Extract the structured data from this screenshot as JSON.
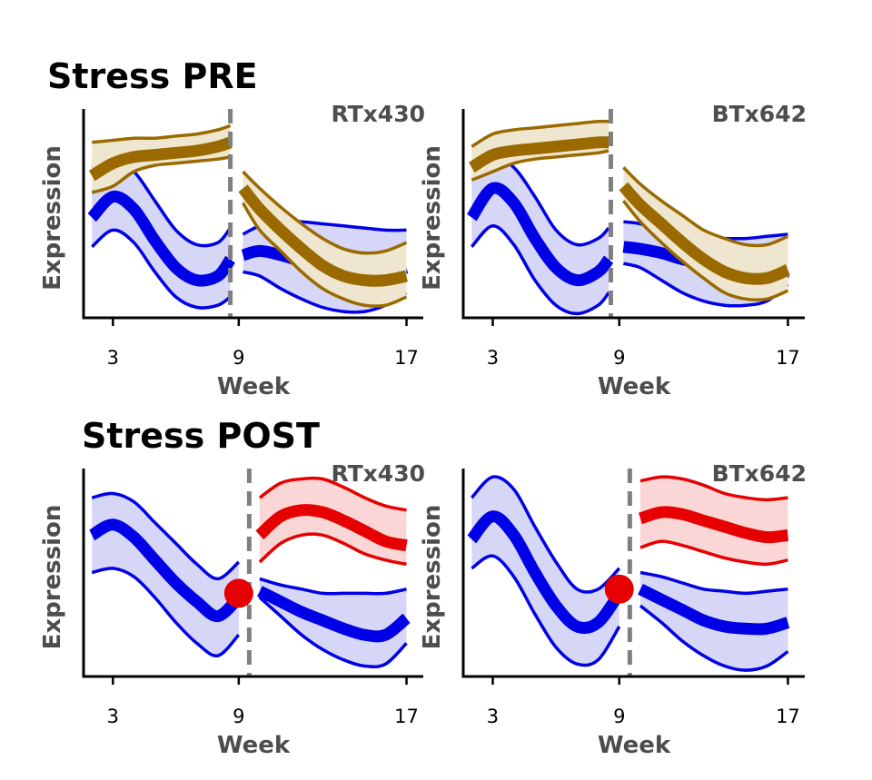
{
  "rows": [
    {
      "title": "Stress PRE"
    },
    {
      "title": "Stress POST"
    }
  ],
  "colors": {
    "blue": "#0000e6",
    "blue_fill": "#d6d6f7",
    "brown": "#9a6a00",
    "brown_fill": "#efe6cf",
    "red": "#e60000",
    "red_fill": "#fbd6d6",
    "divider": "#808080",
    "text_gray": "#4d4d4d"
  },
  "chart_data": [
    {
      "type": "line",
      "row": "Stress PRE",
      "title": "RTx430",
      "xlabel": "Week",
      "ylabel": "Expression",
      "xticks": [
        3,
        9,
        17
      ],
      "xlim": [
        1.6,
        17.8
      ],
      "ylim": [
        0,
        1
      ],
      "divider_x": 8.6,
      "series": [
        {
          "color": "blue",
          "segment": "pre",
          "x": [
            2,
            3,
            4,
            5,
            6,
            7,
            8,
            8.6
          ],
          "y": [
            0.48,
            0.58,
            0.52,
            0.37,
            0.24,
            0.18,
            0.2,
            0.28
          ],
          "lower": [
            0.34,
            0.42,
            0.36,
            0.22,
            0.1,
            0.05,
            0.06,
            0.1
          ],
          "upper": [
            0.72,
            0.75,
            0.7,
            0.56,
            0.42,
            0.35,
            0.36,
            0.43
          ]
        },
        {
          "color": "brown",
          "segment": "pre",
          "x": [
            2,
            3,
            4,
            5,
            6,
            7,
            8,
            8.6
          ],
          "y": [
            0.68,
            0.74,
            0.77,
            0.78,
            0.79,
            0.8,
            0.82,
            0.84
          ],
          "lower": [
            0.6,
            0.63,
            0.7,
            0.73,
            0.74,
            0.75,
            0.76,
            0.77
          ],
          "upper": [
            0.84,
            0.85,
            0.86,
            0.86,
            0.87,
            0.88,
            0.9,
            0.92
          ]
        },
        {
          "color": "blue",
          "segment": "post",
          "x": [
            9.2,
            10,
            11,
            12,
            13,
            14,
            15,
            16,
            17
          ],
          "y": [
            0.3,
            0.32,
            0.3,
            0.27,
            0.24,
            0.21,
            0.2,
            0.21,
            0.24
          ],
          "lower": [
            0.22,
            0.2,
            0.14,
            0.09,
            0.05,
            0.03,
            0.03,
            0.06,
            0.12
          ],
          "upper": [
            0.4,
            0.44,
            0.46,
            0.46,
            0.45,
            0.44,
            0.43,
            0.42,
            0.42
          ]
        },
        {
          "color": "brown",
          "segment": "post",
          "x": [
            9.2,
            10,
            11,
            12,
            13,
            14,
            15,
            16,
            17
          ],
          "y": [
            0.62,
            0.52,
            0.42,
            0.33,
            0.25,
            0.2,
            0.18,
            0.18,
            0.2
          ],
          "lower": [
            0.55,
            0.42,
            0.32,
            0.22,
            0.14,
            0.09,
            0.06,
            0.06,
            0.1
          ],
          "upper": [
            0.7,
            0.62,
            0.53,
            0.45,
            0.38,
            0.33,
            0.31,
            0.32,
            0.36
          ]
        }
      ]
    },
    {
      "type": "line",
      "row": "Stress PRE",
      "title": "BTx642",
      "xlabel": "Week",
      "ylabel": "Expression",
      "xticks": [
        3,
        9,
        17
      ],
      "xlim": [
        1.6,
        17.8
      ],
      "ylim": [
        0,
        1
      ],
      "divider_x": 8.6,
      "series": [
        {
          "color": "blue",
          "segment": "pre",
          "x": [
            2,
            3,
            4,
            5,
            6,
            7,
            8,
            8.5
          ],
          "y": [
            0.48,
            0.62,
            0.55,
            0.38,
            0.24,
            0.18,
            0.22,
            0.28
          ],
          "lower": [
            0.34,
            0.44,
            0.35,
            0.18,
            0.06,
            0.02,
            0.06,
            0.12
          ],
          "upper": [
            0.72,
            0.77,
            0.72,
            0.58,
            0.42,
            0.35,
            0.38,
            0.43
          ]
        },
        {
          "color": "brown",
          "segment": "pre",
          "x": [
            2,
            3,
            4,
            5,
            6,
            7,
            8,
            8.5
          ],
          "y": [
            0.72,
            0.78,
            0.8,
            0.81,
            0.82,
            0.83,
            0.84,
            0.84
          ],
          "lower": [
            0.66,
            0.7,
            0.74,
            0.76,
            0.77,
            0.78,
            0.79,
            0.8
          ],
          "upper": [
            0.82,
            0.88,
            0.9,
            0.91,
            0.92,
            0.93,
            0.94,
            0.94
          ]
        },
        {
          "color": "blue",
          "segment": "post",
          "x": [
            9.2,
            10,
            11,
            12,
            13,
            14,
            15,
            16,
            17
          ],
          "y": [
            0.34,
            0.33,
            0.31,
            0.28,
            0.26,
            0.23,
            0.21,
            0.2,
            0.22
          ],
          "lower": [
            0.26,
            0.24,
            0.18,
            0.12,
            0.08,
            0.06,
            0.06,
            0.08,
            0.16
          ],
          "upper": [
            0.46,
            0.45,
            0.42,
            0.4,
            0.38,
            0.38,
            0.38,
            0.39,
            0.4
          ]
        },
        {
          "color": "brown",
          "segment": "post",
          "x": [
            9.2,
            10,
            11,
            12,
            13,
            14,
            15,
            16,
            17
          ],
          "y": [
            0.63,
            0.54,
            0.45,
            0.36,
            0.28,
            0.22,
            0.19,
            0.19,
            0.23
          ],
          "lower": [
            0.56,
            0.46,
            0.36,
            0.27,
            0.19,
            0.12,
            0.09,
            0.09,
            0.13
          ],
          "upper": [
            0.72,
            0.64,
            0.56,
            0.49,
            0.42,
            0.38,
            0.35,
            0.35,
            0.39
          ]
        }
      ]
    },
    {
      "type": "line",
      "row": "Stress POST",
      "title": "RTx430",
      "xlabel": "Week",
      "ylabel": "Expression",
      "xticks": [
        3,
        9,
        17
      ],
      "xlim": [
        1.6,
        17.8
      ],
      "ylim": [
        0,
        1
      ],
      "divider_x": 9.5,
      "marker": {
        "x": 9.0,
        "y": 0.4,
        "color": "red"
      },
      "series": [
        {
          "color": "blue",
          "segment": "pre",
          "x": [
            2,
            3,
            4,
            5,
            6,
            7,
            8,
            9
          ],
          "y": [
            0.68,
            0.73,
            0.67,
            0.56,
            0.45,
            0.36,
            0.29,
            0.38
          ],
          "lower": [
            0.5,
            0.52,
            0.48,
            0.38,
            0.26,
            0.16,
            0.1,
            0.2
          ],
          "upper": [
            0.86,
            0.88,
            0.84,
            0.74,
            0.64,
            0.54,
            0.47,
            0.55
          ]
        },
        {
          "color": "red",
          "segment": "post",
          "x": [
            10,
            11,
            12,
            13,
            14,
            15,
            16,
            17
          ],
          "y": [
            0.68,
            0.77,
            0.8,
            0.79,
            0.75,
            0.7,
            0.65,
            0.63
          ],
          "lower": [
            0.55,
            0.64,
            0.68,
            0.68,
            0.64,
            0.59,
            0.56,
            0.54
          ],
          "upper": [
            0.86,
            0.93,
            0.95,
            0.95,
            0.91,
            0.86,
            0.82,
            0.8
          ]
        },
        {
          "color": "blue",
          "segment": "post",
          "x": [
            10,
            11,
            12,
            13,
            14,
            15,
            16,
            17
          ],
          "y": [
            0.41,
            0.36,
            0.31,
            0.27,
            0.23,
            0.2,
            0.2,
            0.28
          ],
          "lower": [
            0.38,
            0.29,
            0.2,
            0.13,
            0.08,
            0.05,
            0.06,
            0.16
          ],
          "upper": [
            0.47,
            0.44,
            0.42,
            0.4,
            0.4,
            0.4,
            0.4,
            0.42
          ]
        }
      ]
    },
    {
      "type": "line",
      "row": "Stress POST",
      "title": "BTx642",
      "xlabel": "Week",
      "ylabel": "Expression",
      "xticks": [
        3,
        9,
        17
      ],
      "xlim": [
        1.6,
        17.8
      ],
      "ylim": [
        0,
        1
      ],
      "divider_x": 9.5,
      "marker": {
        "x": 9.0,
        "y": 0.42,
        "color": "red"
      },
      "series": [
        {
          "color": "blue",
          "segment": "pre",
          "x": [
            2,
            3,
            4,
            5,
            6,
            7,
            8,
            9
          ],
          "y": [
            0.66,
            0.77,
            0.68,
            0.5,
            0.34,
            0.24,
            0.26,
            0.4
          ],
          "lower": [
            0.52,
            0.58,
            0.48,
            0.3,
            0.14,
            0.06,
            0.08,
            0.24
          ],
          "upper": [
            0.86,
            0.96,
            0.9,
            0.72,
            0.55,
            0.42,
            0.42,
            0.52
          ]
        },
        {
          "color": "red",
          "segment": "post",
          "x": [
            10,
            11,
            12,
            13,
            14,
            15,
            16,
            17
          ],
          "y": [
            0.76,
            0.79,
            0.78,
            0.75,
            0.72,
            0.69,
            0.67,
            0.68
          ],
          "lower": [
            0.62,
            0.65,
            0.63,
            0.6,
            0.57,
            0.55,
            0.54,
            0.56
          ],
          "upper": [
            0.94,
            0.96,
            0.95,
            0.92,
            0.88,
            0.86,
            0.85,
            0.86
          ]
        },
        {
          "color": "blue",
          "segment": "post",
          "x": [
            10,
            11,
            12,
            13,
            14,
            15,
            16,
            17
          ],
          "y": [
            0.42,
            0.37,
            0.32,
            0.27,
            0.24,
            0.23,
            0.23,
            0.26
          ],
          "lower": [
            0.34,
            0.26,
            0.17,
            0.1,
            0.05,
            0.03,
            0.05,
            0.12
          ],
          "upper": [
            0.5,
            0.48,
            0.45,
            0.42,
            0.41,
            0.4,
            0.41,
            0.42
          ]
        }
      ]
    }
  ]
}
